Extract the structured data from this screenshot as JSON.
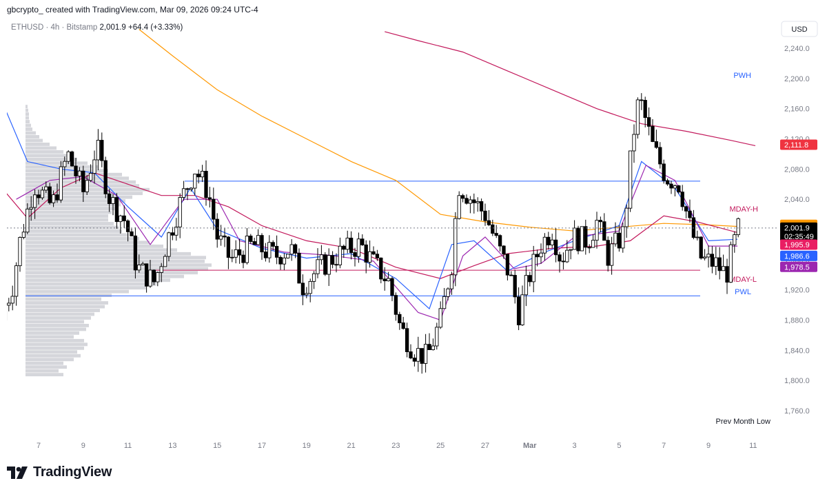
{
  "header": {
    "credit": "gbcrypto_ created with TradingView.com, Mar 09, 2026 09:24 UTC-4"
  },
  "footer": {
    "brand": "TradingView",
    "logo_icon": "tradingview-logo-icon"
  },
  "chart_data": {
    "type": "candlestick",
    "symbol_line": {
      "symbol": "ETHUSD · 4h · Bitstamp",
      "price": "2,001.9",
      "change": "+64.4 (+3.33%)"
    },
    "currency": "USD",
    "y_ticks": [
      "2,240.0",
      "2,200.0",
      "2,160.0",
      "2,120.0",
      "2,080.0",
      "2,040.0",
      "2,000.0",
      "1,960.0",
      "1,920.0",
      "1,880.0",
      "1,840.0",
      "1,800.0",
      "1,760.0"
    ],
    "y_tick_values": [
      2240,
      2200,
      2160,
      2120,
      2080,
      2040,
      2000,
      1960,
      1920,
      1880,
      1840,
      1800,
      1760
    ],
    "ylim": [
      1745,
      2265
    ],
    "x_ticks": [
      "7",
      "9",
      "11",
      "13",
      "15",
      "17",
      "19",
      "21",
      "23",
      "25",
      "27",
      "Mar",
      "3",
      "5",
      "7",
      "9",
      "11"
    ],
    "x_tick_days": [
      7,
      9,
      11,
      13,
      15,
      17,
      19,
      21,
      23,
      25,
      27,
      29,
      31,
      33,
      35,
      37,
      39
    ],
    "xlim": [
      5.5,
      40.8
    ],
    "horizontal_levels": [
      {
        "label": "PWH",
        "value": 2064,
        "color": "#2962ff"
      },
      {
        "label": "MDAY-H",
        "value": 2064,
        "color": "#c2185b"
      },
      {
        "label": "MDAY-L",
        "value": 1946,
        "color": "#c2185b"
      },
      {
        "label": "PWL",
        "value": 1912,
        "color": "#2962ff"
      },
      {
        "label": "Prev Month Low",
        "value": 1757,
        "color": "#131722"
      }
    ],
    "moving_averages": [
      {
        "color": "#ff9800",
        "value_label": "2,005.7",
        "points": [
          [
            11.5,
            2265
          ],
          [
            13,
            2230
          ],
          [
            15,
            2185
          ],
          [
            17,
            2150
          ],
          [
            19,
            2120
          ],
          [
            21,
            2090
          ],
          [
            23,
            2065
          ],
          [
            25,
            2020
          ],
          [
            27,
            2010
          ],
          [
            29,
            2003
          ],
          [
            31,
            1998
          ],
          [
            33,
            2003
          ],
          [
            35,
            2008
          ],
          [
            37,
            2006
          ],
          [
            38.3,
            2004
          ]
        ]
      },
      {
        "color": "#c2185b",
        "value_label": "2,111.8",
        "points": [
          [
            22.5,
            2262
          ],
          [
            24,
            2250
          ],
          [
            26,
            2235
          ],
          [
            28,
            2210
          ],
          [
            30,
            2185
          ],
          [
            32,
            2160
          ],
          [
            34,
            2140
          ],
          [
            36,
            2130
          ],
          [
            38,
            2118
          ],
          [
            39.1,
            2111
          ]
        ]
      },
      {
        "color": "#c2185b",
        "value_label": "1,995.9",
        "points": [
          [
            5.5,
            2050
          ],
          [
            6.5,
            2015
          ],
          [
            8,
            2055
          ],
          [
            9.5,
            2075
          ],
          [
            11,
            2060
          ],
          [
            12.5,
            2045
          ],
          [
            14,
            2045
          ],
          [
            15.5,
            2030
          ],
          [
            17,
            2005
          ],
          [
            19,
            1985
          ],
          [
            21,
            1975
          ],
          [
            23,
            1950
          ],
          [
            25,
            1935
          ],
          [
            26.5,
            1952
          ],
          [
            28,
            1968
          ],
          [
            30,
            1975
          ],
          [
            32,
            1978
          ],
          [
            33.5,
            1985
          ],
          [
            35,
            2018
          ],
          [
            36.5,
            2010
          ],
          [
            38.3,
            1996
          ]
        ]
      },
      {
        "color": "#2962ff",
        "value_label": "1,986.6",
        "points": [
          [
            5.5,
            2160
          ],
          [
            6.5,
            2090
          ],
          [
            8,
            2080
          ],
          [
            9.5,
            2075
          ],
          [
            11,
            2030
          ],
          [
            12.5,
            1990
          ],
          [
            13.8,
            2055
          ],
          [
            15,
            2000
          ],
          [
            17,
            1975
          ],
          [
            19,
            1962
          ],
          [
            21,
            1968
          ],
          [
            23,
            1935
          ],
          [
            24.5,
            1895
          ],
          [
            25.5,
            1980
          ],
          [
            26.5,
            1985
          ],
          [
            28,
            1945
          ],
          [
            29.5,
            1968
          ],
          [
            31,
            1985
          ],
          [
            33,
            2005
          ],
          [
            34,
            2090
          ],
          [
            35.5,
            2055
          ],
          [
            37,
            1985
          ],
          [
            38.3,
            1987
          ]
        ]
      },
      {
        "color": "#9c27b0",
        "value_label": "1,978.5",
        "points": [
          [
            6,
            2040
          ],
          [
            7.5,
            2065
          ],
          [
            9,
            2070
          ],
          [
            10.5,
            2045
          ],
          [
            12,
            1980
          ],
          [
            13.5,
            2040
          ],
          [
            15,
            2040
          ],
          [
            16,
            1985
          ],
          [
            18,
            1970
          ],
          [
            20,
            1966
          ],
          [
            22,
            1958
          ],
          [
            24,
            1890
          ],
          [
            25,
            1880
          ],
          [
            26,
            1965
          ],
          [
            27,
            1990
          ],
          [
            28.3,
            1948
          ],
          [
            29.5,
            1955
          ],
          [
            31,
            1990
          ],
          [
            33,
            1998
          ],
          [
            34.2,
            2085
          ],
          [
            35.5,
            2065
          ],
          [
            37,
            1978
          ],
          [
            38.3,
            1978
          ]
        ]
      }
    ],
    "price_labels": [
      {
        "value": "2,111.8",
        "price": 2111.8,
        "bg": "#ef3340",
        "fg": "#ffffff"
      },
      {
        "value": "2,005.7",
        "price": 2005.7,
        "bg": "#ff9800",
        "fg": "#131722"
      },
      {
        "value": "2,001.9",
        "price": 2001.9,
        "bg": "#000000",
        "fg": "#ffffff"
      },
      {
        "value": "02:35:49",
        "price": 1990.5,
        "bg": "#000000",
        "fg": "#ffffff"
      },
      {
        "value": "1,995.9",
        "price": 1979.5,
        "bg": "#e91e63",
        "fg": "#ffffff"
      },
      {
        "value": "1,986.6",
        "price": 1964.5,
        "bg": "#2962ff",
        "fg": "#ffffff"
      },
      {
        "value": "1,978.5",
        "price": 1950.0,
        "bg": "#9c27b0",
        "fg": "#ffffff"
      }
    ],
    "current_price": 2001.9,
    "volume_profile": {
      "price_step": 5,
      "rows": [
        [
          1805,
          55
        ],
        [
          1810,
          48
        ],
        [
          1815,
          60
        ],
        [
          1820,
          55
        ],
        [
          1825,
          70
        ],
        [
          1830,
          80
        ],
        [
          1835,
          75
        ],
        [
          1840,
          85
        ],
        [
          1845,
          90
        ],
        [
          1850,
          85
        ],
        [
          1855,
          70
        ],
        [
          1860,
          78
        ],
        [
          1865,
          88
        ],
        [
          1870,
          92
        ],
        [
          1875,
          85
        ],
        [
          1880,
          95
        ],
        [
          1885,
          100
        ],
        [
          1890,
          108
        ],
        [
          1895,
          115
        ],
        [
          1900,
          120
        ],
        [
          1905,
          110
        ],
        [
          1910,
          125
        ],
        [
          1915,
          150
        ],
        [
          1920,
          175
        ],
        [
          1925,
          190
        ],
        [
          1930,
          210
        ],
        [
          1935,
          230
        ],
        [
          1940,
          250
        ],
        [
          1945,
          265
        ],
        [
          1950,
          270
        ],
        [
          1955,
          260
        ],
        [
          1960,
          262
        ],
        [
          1965,
          240
        ],
        [
          1970,
          220
        ],
        [
          1975,
          200
        ],
        [
          1980,
          180
        ],
        [
          1985,
          165
        ],
        [
          1990,
          150
        ],
        [
          1995,
          140
        ],
        [
          2000,
          135
        ],
        [
          2005,
          128
        ],
        [
          2010,
          120
        ],
        [
          2015,
          120
        ],
        [
          2020,
          125
        ],
        [
          2025,
          130
        ],
        [
          2030,
          138
        ],
        [
          2035,
          145
        ],
        [
          2040,
          155
        ],
        [
          2045,
          170
        ],
        [
          2050,
          180
        ],
        [
          2055,
          165
        ],
        [
          2060,
          160
        ],
        [
          2065,
          150
        ],
        [
          2070,
          140
        ],
        [
          2075,
          120
        ],
        [
          2080,
          105
        ],
        [
          2085,
          90
        ],
        [
          2090,
          75
        ],
        [
          2095,
          65
        ],
        [
          2100,
          55
        ],
        [
          2105,
          45
        ],
        [
          2110,
          35
        ],
        [
          2115,
          25
        ],
        [
          2120,
          20
        ],
        [
          2125,
          15
        ],
        [
          2130,
          10
        ],
        [
          2135,
          8
        ],
        [
          2140,
          6
        ],
        [
          2145,
          5
        ],
        [
          2150,
          5
        ],
        [
          2155,
          4
        ],
        [
          2160,
          3
        ]
      ]
    }
  }
}
